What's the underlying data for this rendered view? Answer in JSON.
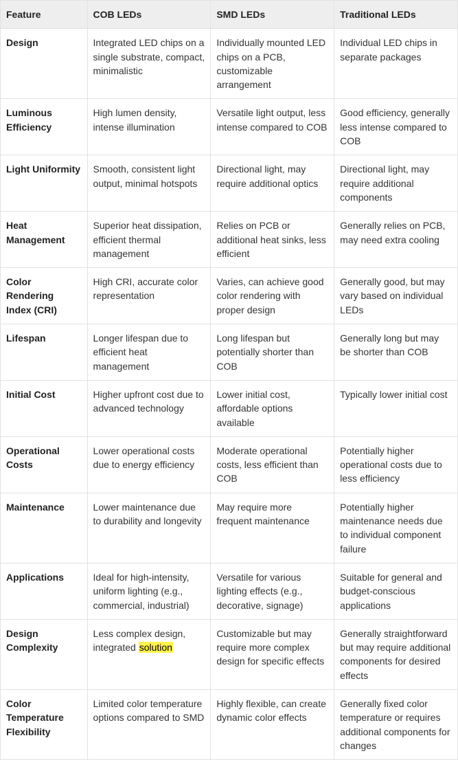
{
  "table": {
    "highlight_color": "#fff34d",
    "columns": [
      {
        "key": "feature",
        "label": "Feature"
      },
      {
        "key": "cob",
        "label": "COB LEDs"
      },
      {
        "key": "smd",
        "label": "SMD LEDs"
      },
      {
        "key": "trad",
        "label": "Traditional LEDs"
      }
    ],
    "rows": [
      {
        "feature": "Design",
        "cob": "Integrated LED chips on a single substrate, compact, minimalistic",
        "smd": "Individually mounted LED chips on a PCB, customizable arrangement",
        "trad": "Individual LED chips in separate packages"
      },
      {
        "feature": "Luminous Efficiency",
        "cob": "High lumen density, intense illumination",
        "smd": "Versatile light output, less intense compared to COB",
        "trad": "Good efficiency, generally less intense compared to COB"
      },
      {
        "feature": "Light Uniformity",
        "cob": "Smooth, consistent light output, minimal hotspots",
        "smd": "Directional light, may require additional optics",
        "trad": "Directional light, may require additional components"
      },
      {
        "feature": "Heat Management",
        "cob": "Superior heat dissipation, efficient thermal management",
        "smd": "Relies on PCB or additional heat sinks, less efficient",
        "trad": "Generally relies on PCB, may need extra cooling"
      },
      {
        "feature": "Color Rendering Index (CRI)",
        "cob": "High CRI, accurate color representation",
        "smd": "Varies, can achieve good color rendering with proper design",
        "trad": "Generally good, but may vary based on individual LEDs"
      },
      {
        "feature": "Lifespan",
        "cob": "Longer lifespan due to efficient heat management",
        "smd": "Long lifespan but potentially shorter than COB",
        "trad": "Generally long but may be shorter than COB"
      },
      {
        "feature": "Initial Cost",
        "cob": "Higher upfront cost due to advanced technology",
        "smd": "Lower initial cost, affordable options available",
        "trad": "Typically lower initial cost"
      },
      {
        "feature": "Operational Costs",
        "cob": "Lower operational costs due to energy efficiency",
        "smd": "Moderate operational costs, less efficient than COB",
        "trad": "Potentially higher operational costs due to less efficiency"
      },
      {
        "feature": "Maintenance",
        "cob": "Lower maintenance due to durability and longevity",
        "smd": "May require more frequent maintenance",
        "trad": "Potentially higher maintenance needs due to individual component failure"
      },
      {
        "feature": "Applications",
        "cob": "Ideal for high-intensity, uniform lighting (e.g., commercial, industrial)",
        "smd": "Versatile for various lighting effects (e.g., decorative, signage)",
        "trad": "Suitable for general and budget-conscious applications"
      },
      {
        "feature": "Design Complexity",
        "cob": "Less complex design, integrated solution",
        "cob_highlight": "solution",
        "smd": "Customizable but may require more complex design for specific effects",
        "trad": "Generally straightforward but may require additional components for desired effects"
      },
      {
        "feature": "Color Temperature Flexibility",
        "cob": "Limited color temperature options compared to SMD",
        "smd": "Highly flexible, can create dynamic color effects",
        "trad": "Generally fixed color temperature or requires additional components for changes"
      }
    ]
  }
}
